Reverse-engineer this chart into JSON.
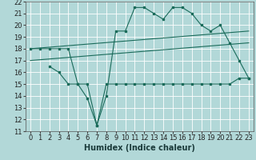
{
  "bg_color": "#b2d8d8",
  "grid_color": "#ffffff",
  "line_color": "#1a6b5a",
  "xlabel": "Humidex (Indice chaleur)",
  "xlim": [
    -0.5,
    23.5
  ],
  "ylim": [
    11,
    22
  ],
  "xticks": [
    0,
    1,
    2,
    3,
    4,
    5,
    6,
    7,
    8,
    9,
    10,
    11,
    12,
    13,
    14,
    15,
    16,
    17,
    18,
    19,
    20,
    21,
    22,
    23
  ],
  "yticks": [
    11,
    12,
    13,
    14,
    15,
    16,
    17,
    18,
    19,
    20,
    21,
    22
  ],
  "series1_x": [
    0,
    1,
    2,
    3,
    4,
    5,
    6,
    7,
    8,
    9,
    10,
    11,
    12,
    13,
    14,
    15,
    16,
    17,
    18,
    19,
    20,
    21,
    22,
    23
  ],
  "series1_y": [
    18,
    18,
    18,
    18,
    18,
    15,
    15,
    11.5,
    14,
    19.5,
    19.5,
    21.5,
    21.5,
    21,
    20.5,
    21.5,
    21.5,
    21,
    20,
    19.5,
    20,
    18.5,
    17,
    15.5
  ],
  "series2_x": [
    2,
    3,
    4,
    5,
    6,
    7,
    8,
    9,
    10,
    11,
    12,
    13,
    14,
    15,
    16,
    17,
    18,
    19,
    20,
    21,
    22,
    23
  ],
  "series2_y": [
    16.5,
    16,
    15,
    15,
    13.8,
    11.5,
    15,
    15,
    15,
    15,
    15,
    15,
    15,
    15,
    15,
    15,
    15,
    15,
    15,
    15,
    15.5,
    15.5
  ],
  "series3_x": [
    0,
    23
  ],
  "series3_y": [
    18.0,
    19.5
  ],
  "series4_x": [
    0,
    23
  ],
  "series4_y": [
    17.0,
    18.5
  ],
  "font_size_label": 7,
  "font_size_tick": 6
}
